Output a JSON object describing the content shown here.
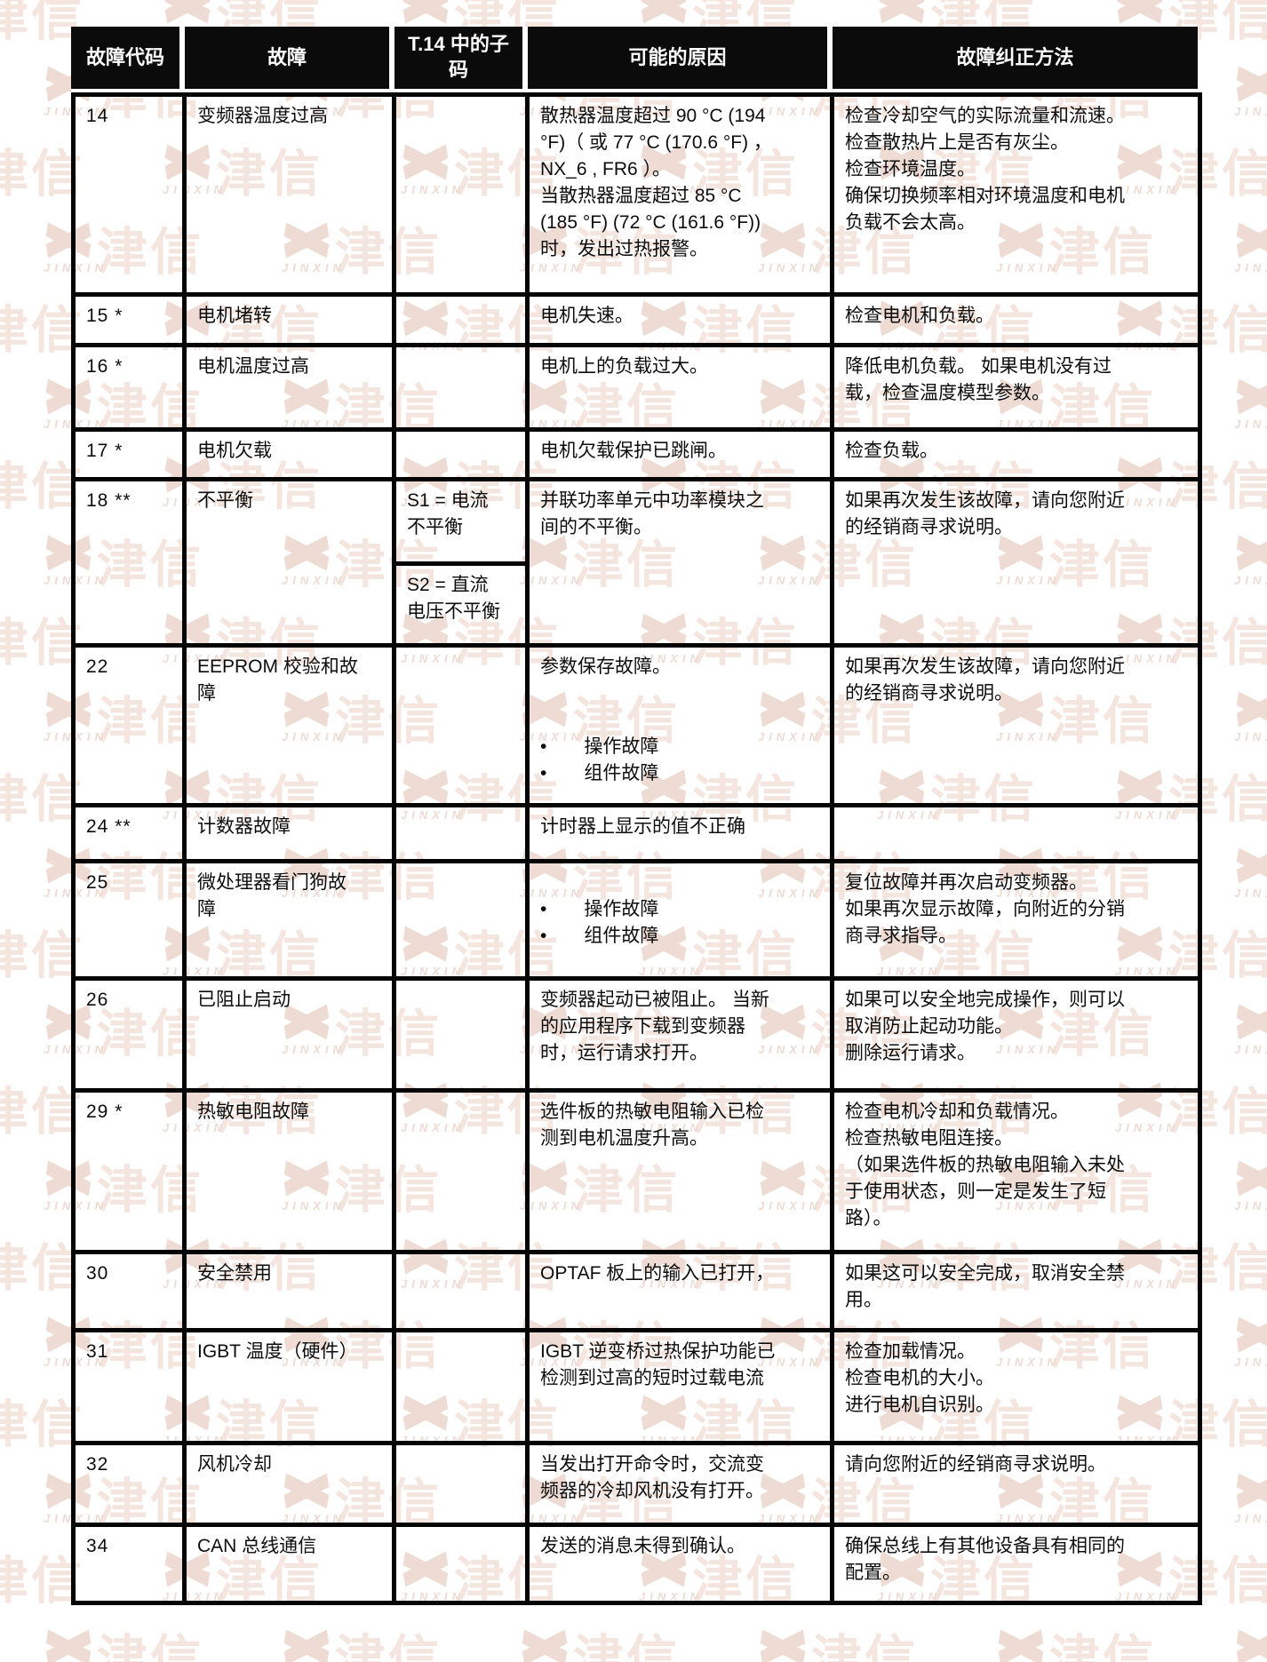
{
  "watermark": {
    "brand_cn": "津信",
    "brand_en": "JINXIN",
    "color_primary": "#f4e5de",
    "color_secondary": "#eedcd4"
  },
  "table": {
    "headers": [
      "故障代码",
      "故障",
      "T.14 中的子码",
      "可能的原因",
      "故障纠正方法"
    ],
    "rows": [
      {
        "code": "14",
        "fault": "变频器温度过高",
        "subcode": "",
        "cause": "散热器温度超过 90 °C (194\n°F)（ 或 77 °C (170.6 °F) ，\nNX_6 , FR6 ）。\n当散热器温度超过 85 °C\n(185 °F) (72 °C (161.6 °F))\n时，发出过热报警。",
        "fix": "检查冷却空气的实际流量和流速。\n检查散热片上是否有灰尘。\n检查环境温度。\n确保切换频率相对环境温度和电机\n负载不会太高。"
      },
      {
        "code": "15 *",
        "fault": "电机堵转",
        "subcode": "",
        "cause": "电机失速。",
        "fix": "检查电机和负载。"
      },
      {
        "code": "16 *",
        "fault": "电机温度过高",
        "subcode": "",
        "cause": "电机上的负载过大。",
        "fix": "降低电机负载。 如果电机没有过\n载，检查温度模型参数。"
      },
      {
        "code": "17 *",
        "fault": "电机欠载",
        "subcode": "",
        "cause": "电机欠载保护已跳闸。",
        "fix": "检查负载。"
      },
      {
        "code": "18 **",
        "fault": "不平衡",
        "subcodes": [
          "S1 = 电流\n不平衡",
          "S2 = 直流\n电压不平衡"
        ],
        "cause": "并联功率单元中功率模块之\n间的不平衡。",
        "fix": "如果再次发生该故障，请向您附近\n的经销商寻求说明。"
      },
      {
        "code": "22",
        "fault": "EEPROM 校验和故\n障",
        "subcode": "",
        "cause": "参数保存故障。\n\n\n•  操作故障\n•  组件故障",
        "fix": "如果再次发生该故障，请向您附近\n的经销商寻求说明。"
      },
      {
        "code": "24 **",
        "fault": "计数器故障",
        "subcode": "",
        "cause": "计时器上显示的值不正确",
        "fix": ""
      },
      {
        "code": "25",
        "fault": "微处理器看门狗故\n障",
        "subcode": "",
        "cause": "\n•  操作故障\n•  组件故障",
        "fix": "复位故障并再次启动变频器。\n如果再次显示故障，向附近的分销\n商寻求指导。"
      },
      {
        "code": "26",
        "fault": "已阻止启动",
        "subcode": "",
        "cause": "变频器起动已被阻止。 当新\n的应用程序下载到变频器\n时，运行请求打开。",
        "fix": "如果可以安全地完成操作，则可以\n取消防止起动功能。\n删除运行请求。"
      },
      {
        "code": "29 *",
        "fault": "热敏电阻故障",
        "subcode": "",
        "cause": "选件板的热敏电阻输入已检\n测到电机温度升高。",
        "fix": "检查电机冷却和负载情况。\n检查热敏电阻连接。\n（如果选件板的热敏电阻输入未处\n于使用状态，则一定是发生了短\n路）。"
      },
      {
        "code": "30",
        "fault": "安全禁用",
        "subcode": "",
        "cause": "OPTAF 板上的输入已打开，",
        "fix": "如果这可以安全完成，取消安全禁\n用。"
      },
      {
        "code": "31",
        "fault": "IGBT 温度（硬件）",
        "subcode": "",
        "cause": "IGBT 逆变桥过热保护功能已\n检测到过高的短时过载电流",
        "fix": "检查加载情况。\n检查电机的大小。\n进行电机自识别。"
      },
      {
        "code": "32",
        "fault": "风机冷却",
        "subcode": "",
        "cause": "当发出打开命令时，交流变\n频器的冷却风机没有打开。",
        "fix": "请向您附近的经销商寻求说明。"
      },
      {
        "code": "34",
        "fault": "CAN 总线通信",
        "subcode": "",
        "cause": "发送的消息未得到确认。",
        "fix": "确保总线上有其他设备具有相同的\n配置。"
      }
    ]
  }
}
